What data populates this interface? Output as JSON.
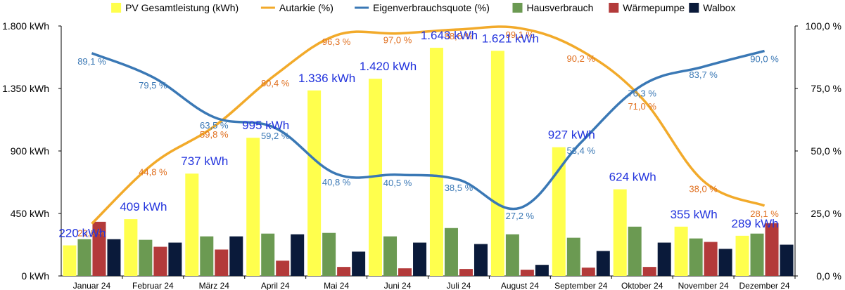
{
  "chart_data": {
    "type": "bar",
    "categories": [
      "Januar 24",
      "Februar 24",
      "März 24",
      "April 24",
      "Mai 24",
      "Juni 24",
      "Juli 24",
      "August 24",
      "September 24",
      "Oktober 24",
      "November 24",
      "Dezember 24"
    ],
    "legend_position": "top",
    "grid": false,
    "y_left": {
      "range": [
        0,
        1800
      ],
      "ticks": [
        "0 kWh",
        "450 kWh",
        "900 kWh",
        "1.350 kWh",
        "1.800 kWh"
      ]
    },
    "y_right": {
      "range": [
        0,
        100
      ],
      "ticks": [
        "0,0 %",
        "25,0 %",
        "50,0 %",
        "75,0 %",
        "100,0 %"
      ]
    },
    "bar_series": [
      {
        "name": "PV Gesamtleistung (kWh)",
        "color": "#ffff4d",
        "values": [
          220,
          409,
          737,
          995,
          1336,
          1420,
          1643,
          1621,
          927,
          624,
          355,
          289
        ],
        "labels": [
          "220 kWh",
          "409 kWh",
          "737 kWh",
          "995 kWh",
          "1.336 kWh",
          "1.420 kWh",
          "1.643 kWh",
          "1.621 kWh",
          "927 kWh",
          "624 kWh",
          "355 kWh",
          "289 kWh"
        ]
      },
      {
        "name": "Hausverbrauch",
        "color": "#6b9a52",
        "values": [
          265,
          260,
          285,
          305,
          310,
          285,
          345,
          300,
          275,
          355,
          270,
          305
        ]
      },
      {
        "name": "Wärmepumpe",
        "color": "#b33a3a",
        "values": [
          390,
          210,
          190,
          110,
          65,
          55,
          50,
          45,
          60,
          65,
          245,
          380
        ]
      },
      {
        "name": "Walbox",
        "color": "#0a1a3a",
        "values": [
          265,
          240,
          285,
          300,
          175,
          240,
          230,
          80,
          180,
          240,
          195,
          225
        ]
      }
    ],
    "line_series": [
      {
        "name": "Autarkie (%)",
        "color": "#f2aa2a",
        "label_color": "#e07020",
        "values": [
          20.9,
          44.8,
          59.8,
          80.4,
          96.3,
          97.0,
          98.6,
          99.1,
          90.2,
          71.0,
          38.0,
          28.1
        ],
        "labels": [
          "20,9 %",
          "44,8 %",
          "59,8 %",
          "80,4 %",
          "96,3 %",
          "97,0 %",
          "98,6 %",
          "99,1 %",
          "90,2 %",
          "71,0 %",
          "38,0 %",
          "28,1 %"
        ]
      },
      {
        "name": "Eigenverbrauchsquote (%)",
        "color": "#3a78b5",
        "label_color": "#3a78b5",
        "values": [
          89.1,
          79.5,
          63.5,
          59.2,
          40.8,
          40.5,
          38.5,
          27.2,
          53.4,
          76.3,
          83.7,
          90.0
        ],
        "labels": [
          "89,1 %",
          "79,5 %",
          "63,5 %",
          "59,2 %",
          "40,8 %",
          "40,5 %",
          "38,5 %",
          "27,2 %",
          "53,4 %",
          "76,3 %",
          "83,7 %",
          "90,0 %"
        ]
      }
    ],
    "legend": [
      {
        "name": "PV Gesamtleistung (kWh)",
        "kind": "box",
        "color": "#ffff4d"
      },
      {
        "name": "Autarkie (%)",
        "kind": "line",
        "color": "#f2aa2a"
      },
      {
        "name": "Eigenverbrauchsquote (%)",
        "kind": "line",
        "color": "#3a78b5"
      },
      {
        "name": "Hausverbrauch",
        "kind": "box",
        "color": "#6b9a52"
      },
      {
        "name": "Wärmepumpe",
        "kind": "box",
        "color": "#b33a3a"
      },
      {
        "name": "Walbox",
        "kind": "box",
        "color": "#0a1a3a"
      }
    ]
  }
}
